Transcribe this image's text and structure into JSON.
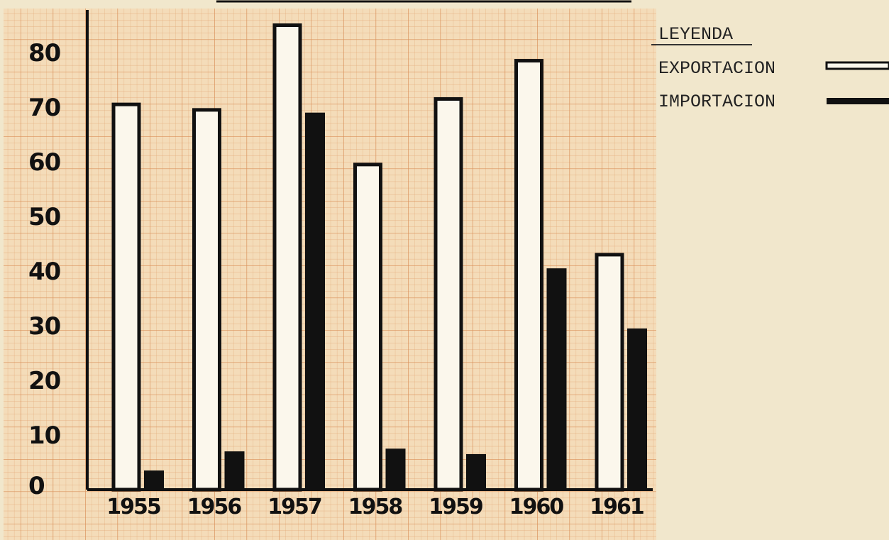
{
  "chart_data": {
    "type": "bar",
    "categories": [
      "1955",
      "1956",
      "1957",
      "1958",
      "1959",
      "1960",
      "1961"
    ],
    "series": [
      {
        "name": "EXPORTACION",
        "values": [
          70.5,
          69.5,
          85,
          59.5,
          71.5,
          78.5,
          43
        ]
      },
      {
        "name": "IMPORTACION",
        "values": [
          3.5,
          7,
          69,
          7.5,
          6.5,
          40.5,
          29.5
        ]
      }
    ],
    "yticks": [
      "0",
      "10",
      "20",
      "30",
      "40",
      "50",
      "60",
      "70",
      "80"
    ],
    "ylim": [
      0,
      88
    ],
    "grid": true,
    "legend_title": "LEYENDA",
    "legend_placement": "top-right",
    "colors": {
      "paper": "#f1e7cc",
      "grid_paper": "#f3d9b6",
      "grid_line": "#e0a06a",
      "ink": "#111111",
      "export_fill": "#fbf7ec",
      "import_fill": "#111111"
    }
  }
}
